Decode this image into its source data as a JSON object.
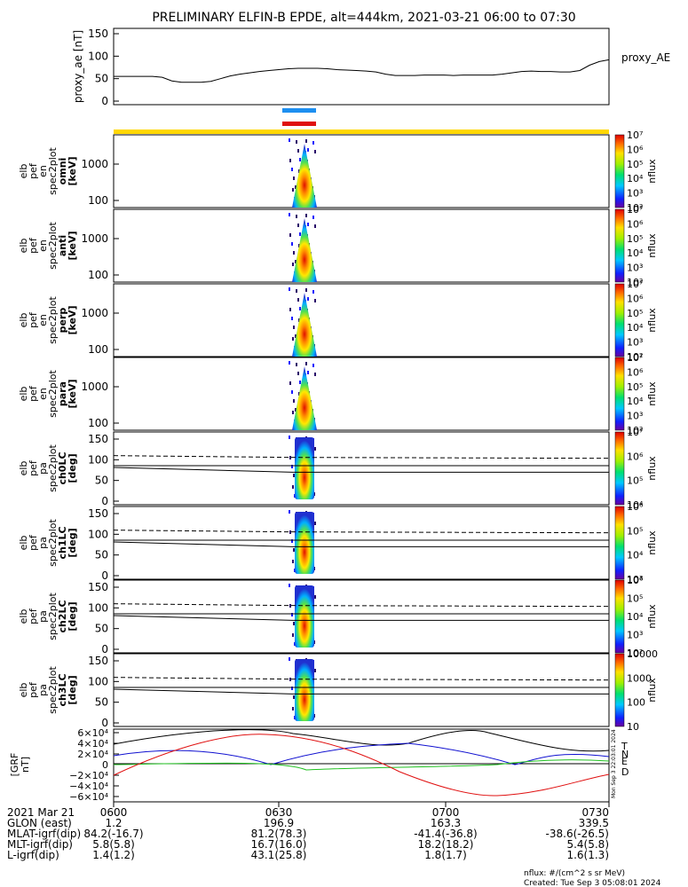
{
  "title": "PRELIMINARY ELFIN-B EPDE, alt=444km, 2021-03-21 06:00 to 07:30",
  "proxy_ae": {
    "ylabel": "proxy_ae [nT]",
    "legend": "proxy_AE",
    "yticks": [
      "0",
      "50",
      "100",
      "150"
    ],
    "values": [
      55,
      55,
      55,
      55,
      55,
      53,
      45,
      42,
      42,
      42,
      44,
      50,
      56,
      60,
      63,
      66,
      68,
      70,
      72,
      73,
      73,
      73,
      72,
      70,
      69,
      68,
      67,
      65,
      60,
      57,
      57,
      57,
      58,
      58,
      58,
      57,
      58,
      58,
      58,
      58,
      60,
      63,
      66,
      67,
      66,
      66,
      65,
      65,
      68,
      80,
      88,
      92
    ],
    "line_color": "#000000"
  },
  "flags": {
    "blue_color": "#1e8ff0",
    "red_color": "#e01010",
    "yellow_color": "#ffd700"
  },
  "spectra_energy": [
    {
      "ylabel": [
        "elb",
        "pef",
        "en",
        "spec2plot",
        "omni",
        "[keV]"
      ],
      "yticks": [
        "100",
        "1000"
      ],
      "cbar_label": "nflux",
      "cbar_ticks": [
        "10²",
        "10³",
        "10⁴",
        "10⁵",
        "10⁶",
        "10⁷"
      ]
    },
    {
      "ylabel": [
        "elb",
        "pef",
        "en",
        "spec2plot",
        "anti",
        "[keV]"
      ],
      "yticks": [
        "100",
        "1000"
      ],
      "cbar_label": "nflux",
      "cbar_ticks": [
        "10²",
        "10³",
        "10⁴",
        "10⁵",
        "10⁶",
        "10⁷"
      ]
    },
    {
      "ylabel": [
        "elb",
        "pef",
        "en",
        "spec2plot",
        "perp",
        "[keV]"
      ],
      "yticks": [
        "100",
        "1000"
      ],
      "cbar_label": "nflux",
      "cbar_ticks": [
        "10²",
        "10³",
        "10⁴",
        "10⁵",
        "10⁶",
        "10⁷"
      ]
    },
    {
      "ylabel": [
        "elb",
        "pef",
        "en",
        "spec2plot",
        "para",
        "[keV]"
      ],
      "yticks": [
        "100",
        "1000"
      ],
      "cbar_label": "nflux",
      "cbar_ticks": [
        "10²",
        "10³",
        "10⁴",
        "10⁵",
        "10⁶",
        "10⁷"
      ]
    }
  ],
  "spectra_pitch": [
    {
      "ylabel": [
        "elb",
        "pef",
        "pa",
        "spec2plot",
        "ch0LC",
        "[deg]"
      ],
      "yticks": [
        "0",
        "50",
        "100",
        "150"
      ],
      "cbar_label": "nflux",
      "cbar_ticks": [
        "10⁴",
        "10⁵",
        "10⁶",
        "10⁷"
      ]
    },
    {
      "ylabel": [
        "elb",
        "pef",
        "pa",
        "spec2plot",
        "ch1LC",
        "[deg]"
      ],
      "yticks": [
        "0",
        "50",
        "100",
        "150"
      ],
      "cbar_label": "nflux",
      "cbar_ticks": [
        "10³",
        "10⁴",
        "10⁵",
        "10⁶"
      ]
    },
    {
      "ylabel": [
        "elb",
        "pef",
        "pa",
        "spec2plot",
        "ch2LC",
        "[deg]"
      ],
      "yticks": [
        "0",
        "50",
        "100",
        "150"
      ],
      "cbar_label": "nflux",
      "cbar_ticks": [
        "10²",
        "10³",
        "10⁴",
        "10⁵",
        "10⁶"
      ]
    },
    {
      "ylabel": [
        "elb",
        "pef",
        "pa",
        "spec2plot",
        "ch3LC",
        "[deg]"
      ],
      "yticks": [
        "0",
        "50",
        "100",
        "150"
      ],
      "cbar_label": "nflux",
      "cbar_ticks": [
        "10",
        "100",
        "1000",
        "10000"
      ]
    }
  ],
  "bfield": {
    "ylabel": [
      "[GRF",
      "nT]"
    ],
    "yticks": [
      "−6×10⁴",
      "−4×10⁴",
      "−2×10⁴",
      "0",
      "2×10⁴",
      "4×10⁴",
      "6×10⁴"
    ],
    "legend": [
      {
        "label": "T",
        "color": "#000000"
      },
      {
        "label": "N",
        "color": "#1010d0"
      },
      {
        "label": "E",
        "color": "#20c020"
      },
      {
        "label": "D",
        "color": "#e01010"
      }
    ],
    "side_note": "Mon Sep  3 22:03:01 2024"
  },
  "chart_data": {
    "type": "line",
    "title": "PRELIMINARY ELFIN-B EPDE, alt=444km, 2021-03-21 06:00 to 07:30",
    "xlim": [
      "06:00",
      "07:30"
    ],
    "series": [
      {
        "name": "proxy_AE",
        "ylim": [
          0,
          150
        ]
      },
      {
        "name": "T"
      },
      {
        "name": "N"
      },
      {
        "name": "E"
      },
      {
        "name": "D"
      }
    ]
  },
  "footer": {
    "rows": [
      {
        "label": "2021 Mar 21",
        "values": [
          "0600",
          "0630",
          "0700",
          "0730"
        ]
      },
      {
        "label": "GLON (east)",
        "values": [
          "1.2",
          "196.9",
          "163.3",
          "339.5"
        ]
      },
      {
        "label": "MLAT-igrf(dip)",
        "values": [
          "84.2(-16.7)",
          "81.2(78.3)",
          "-41.4(-36.8)",
          "-38.6(-26.5)"
        ]
      },
      {
        "label": "MLT-igrf(dip)",
        "values": [
          "5.8(5.8)",
          "16.7(16.0)",
          "18.2(18.2)",
          "5.4(5.8)"
        ]
      },
      {
        "label": "L-igrf(dip)",
        "values": [
          "1.4(1.2)",
          "43.1(25.8)",
          "1.8(1.7)",
          "1.6(1.3)"
        ]
      }
    ],
    "units": "nflux: #/(cm^2 s sr MeV)",
    "created": "Created: Tue Sep  3 05:08:01 2024"
  }
}
